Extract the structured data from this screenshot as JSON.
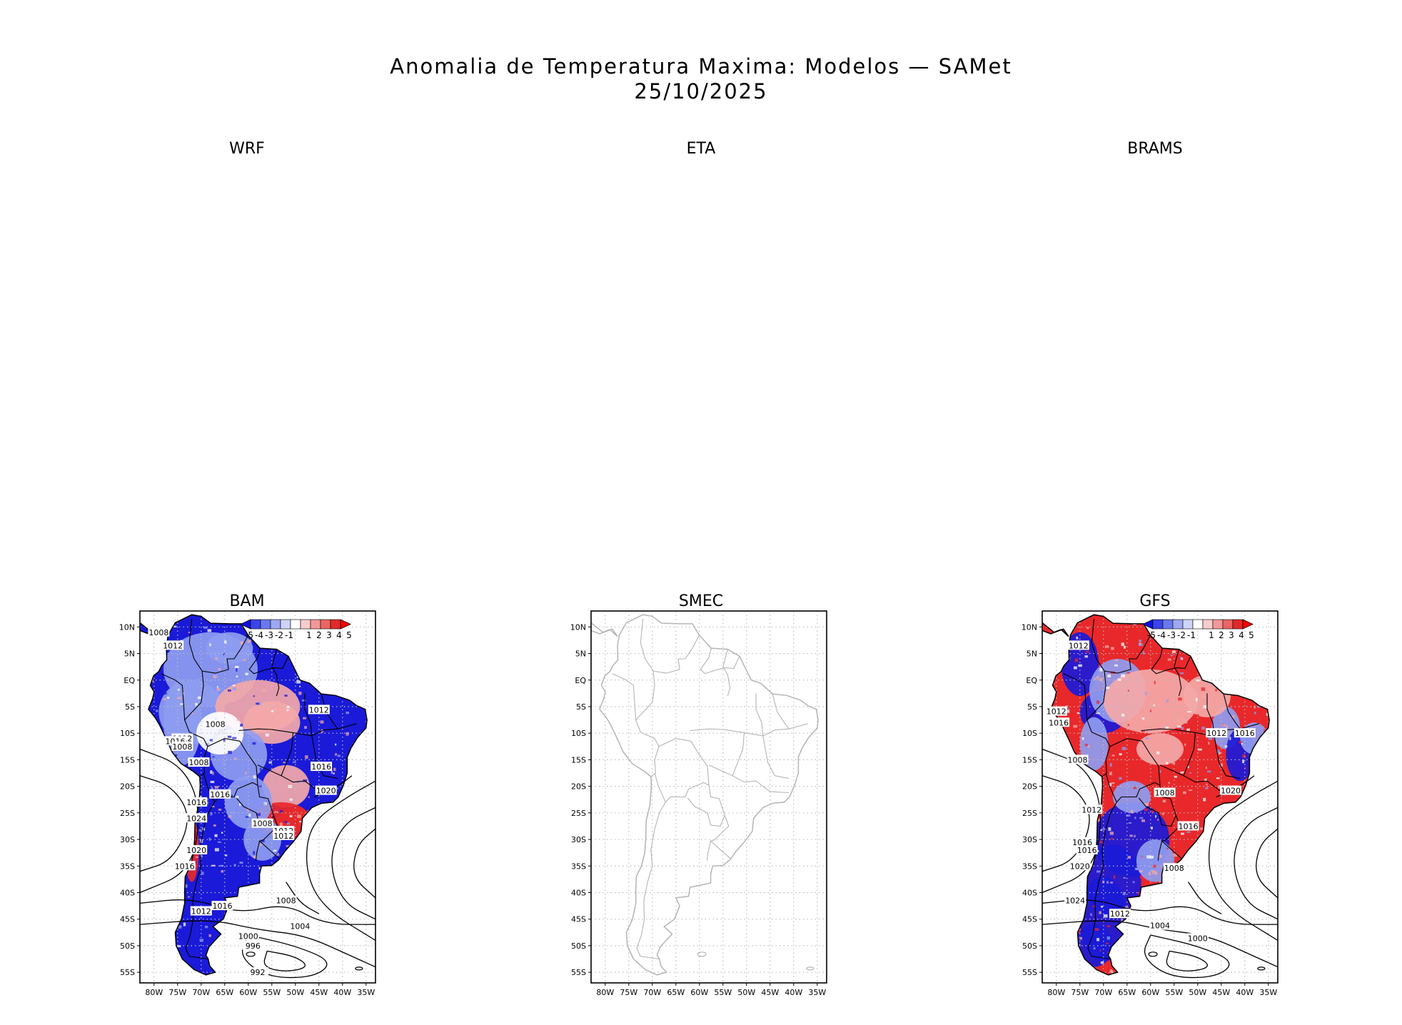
{
  "title": {
    "line1": "Anomalia de Temperatura Maxima: Modelos — SAMet",
    "line2": "25/10/2025"
  },
  "panels": [
    {
      "name": "WRF",
      "has_map": false
    },
    {
      "name": "ETA",
      "has_map": false
    },
    {
      "name": "BRAMS",
      "has_map": false
    },
    {
      "name": "BAM",
      "has_map": true,
      "shaded": true,
      "anomaly": "cold",
      "contour_labels": [
        "1008",
        "1012",
        "1008",
        "1012",
        "1016",
        "1008",
        "1008",
        "1012",
        "1016",
        "1016",
        "1016",
        "1024",
        "1020",
        "1016",
        "1008",
        "1012",
        "1012",
        "1020",
        "1016",
        "1012",
        "1008",
        "1004",
        "1000",
        "996",
        "992"
      ]
    },
    {
      "name": "SMEC",
      "has_map": true,
      "shaded": false,
      "anomaly": "none",
      "contour_labels": []
    },
    {
      "name": "GFS",
      "has_map": true,
      "shaded": true,
      "anomaly": "warm",
      "contour_labels": [
        "1012",
        "1012",
        "1016",
        "1008",
        "1012",
        "1016",
        "1020",
        "1012",
        "1008",
        "1016",
        "1016",
        "1016",
        "1020",
        "1008",
        "1024",
        "1012",
        "1004",
        "1000"
      ]
    }
  ],
  "axes": {
    "lon_labels": [
      "80W",
      "75W",
      "70W",
      "65W",
      "60W",
      "55W",
      "50W",
      "45W",
      "40W",
      "35W"
    ],
    "lat_labels": [
      "10N",
      "5N",
      "EQ",
      "5S",
      "10S",
      "15S",
      "20S",
      "25S",
      "30S",
      "35S",
      "40S",
      "45S",
      "50S",
      "55S"
    ]
  },
  "colorbar": {
    "labels": [
      "-5",
      "-4",
      "-3",
      "-2",
      "-1",
      "1",
      "2",
      "3",
      "4",
      "5"
    ],
    "colors": [
      "#1010e0",
      "#3a44e8",
      "#6a78ee",
      "#9ea8f2",
      "#cdd4f8",
      "#ffffff",
      "#f8cccc",
      "#f29898",
      "#ec6464",
      "#e02a2a",
      "#ff0000"
    ]
  },
  "colors": {
    "cold": "#1a1ad8",
    "cold_light": "#8e9cf0",
    "warm": "#e8282a",
    "warm_light": "#f4a8a8",
    "outline": "#000000",
    "outline_empty": "#b4b4b4",
    "grid": "#bdbdbd"
  }
}
